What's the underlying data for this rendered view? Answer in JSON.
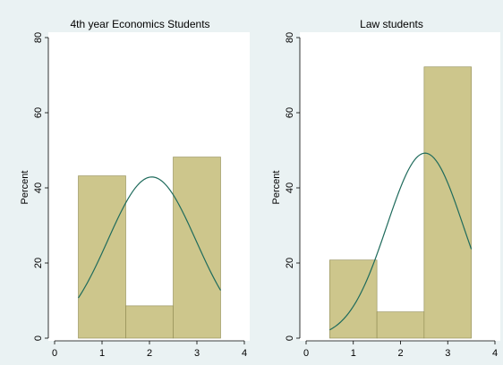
{
  "chart_data": [
    {
      "type": "bar",
      "title": "4th year Economics Students",
      "ylabel": "Percent",
      "xlabel": "",
      "xlim": [
        0,
        4
      ],
      "ylim": [
        0,
        80
      ],
      "xticks": [
        "0",
        "1",
        "2",
        "3",
        "4"
      ],
      "yticks": [
        "0",
        "20",
        "40",
        "60",
        "80"
      ],
      "grid": false,
      "bins": [
        {
          "start": 0.5,
          "end": 1.5,
          "value": 43.2
        },
        {
          "start": 1.5,
          "end": 2.5,
          "value": 8.6
        },
        {
          "start": 2.5,
          "end": 3.5,
          "value": 48.2
        }
      ],
      "normal_curve": {
        "mean": 2.05,
        "sd": 0.93,
        "xrange": [
          0.5,
          3.5
        ]
      },
      "colors": {
        "bar": "#cdc68c",
        "bar_edge": "#8f8a52",
        "curve": "#1f6b5c"
      }
    },
    {
      "type": "bar",
      "title": "Law students",
      "ylabel": "Percent",
      "xlabel": "",
      "xlim": [
        0,
        4
      ],
      "ylim": [
        0,
        80
      ],
      "xticks": [
        "0",
        "1",
        "2",
        "3",
        "4"
      ],
      "yticks": [
        "0",
        "20",
        "40",
        "60",
        "80"
      ],
      "grid": false,
      "bins": [
        {
          "start": 0.5,
          "end": 1.5,
          "value": 20.8
        },
        {
          "start": 1.5,
          "end": 2.5,
          "value": 7.0
        },
        {
          "start": 2.5,
          "end": 3.5,
          "value": 72.2
        }
      ],
      "normal_curve": {
        "mean": 2.52,
        "sd": 0.81,
        "xrange": [
          0.5,
          3.5
        ]
      },
      "colors": {
        "bar": "#cdc68c",
        "bar_edge": "#8f8a52",
        "curve": "#1f6b5c"
      }
    }
  ]
}
